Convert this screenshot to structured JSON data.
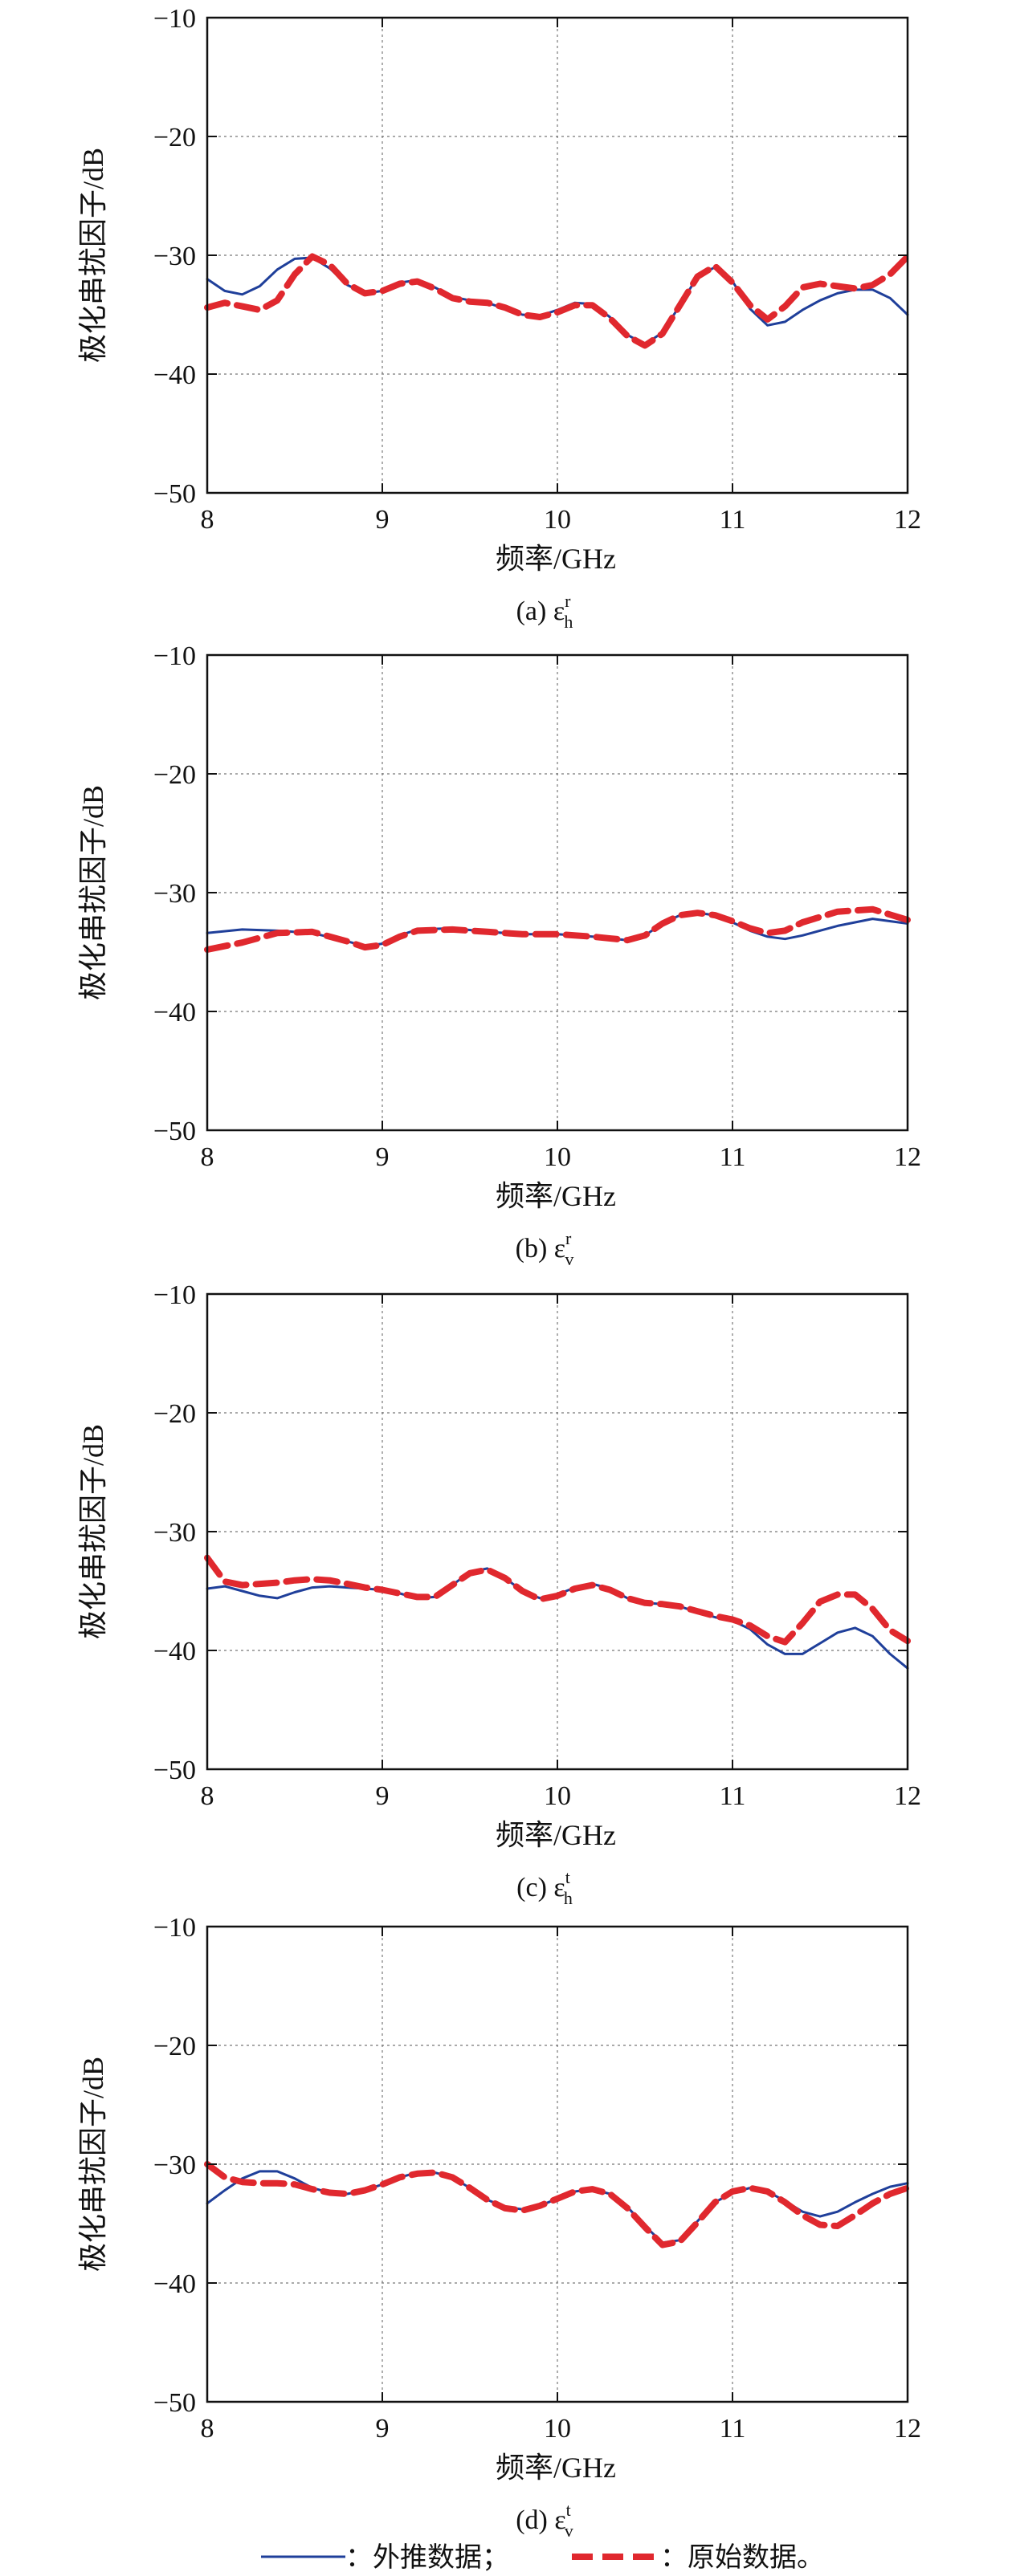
{
  "colors": {
    "extrapolated_line": "#1f3f9a",
    "original_line": "#e0282e",
    "grid": "#777777",
    "axes": "#111111"
  },
  "legend": {
    "extrapolated_label": "：外推数据；",
    "original_label": "：原始数据。"
  },
  "chart_data": [
    {
      "type": "line",
      "caption": "(a) ε",
      "caption_sup": "r",
      "caption_sub": "h",
      "xlabel": "频率/GHz",
      "ylabel": "极化串扰因子/dB",
      "xlim": [
        8,
        12
      ],
      "ylim": [
        -50,
        -10
      ],
      "xticks": [
        8,
        9,
        10,
        11,
        12
      ],
      "yticks": [
        -10,
        -20,
        -30,
        -40,
        -50
      ],
      "ytick_labels": [
        "−10",
        "−20",
        "−30",
        "−40",
        "−50"
      ],
      "grid": true,
      "series": [
        {
          "key": "extrapolated",
          "style": "solid",
          "x": [
            8.0,
            8.1,
            8.2,
            8.3,
            8.4,
            8.5,
            8.6,
            8.7,
            8.8,
            8.9,
            9.0,
            9.1,
            9.2,
            9.3,
            9.4,
            9.5,
            9.6,
            9.7,
            9.8,
            9.9,
            10.0,
            10.1,
            10.2,
            10.3,
            10.4,
            10.5,
            10.6,
            10.7,
            10.8,
            10.9,
            11.0,
            11.1,
            11.2,
            11.3,
            11.4,
            11.5,
            11.6,
            11.7,
            11.8,
            11.9,
            12.0
          ],
          "y": [
            -32.0,
            -33.0,
            -33.3,
            -32.6,
            -31.2,
            -30.3,
            -30.2,
            -31.1,
            -32.5,
            -33.2,
            -33.0,
            -32.3,
            -32.1,
            -32.7,
            -33.5,
            -33.8,
            -34.0,
            -34.5,
            -35.0,
            -35.1,
            -34.6,
            -34.0,
            -34.1,
            -35.2,
            -36.7,
            -37.5,
            -36.5,
            -34.2,
            -31.8,
            -31.0,
            -32.2,
            -34.5,
            -35.9,
            -35.6,
            -34.6,
            -33.8,
            -33.2,
            -32.9,
            -32.9,
            -33.6,
            -35.0
          ]
        },
        {
          "key": "original",
          "style": "dashed",
          "x": [
            8.0,
            8.1,
            8.2,
            8.3,
            8.4,
            8.5,
            8.6,
            8.7,
            8.8,
            8.9,
            9.0,
            9.1,
            9.2,
            9.3,
            9.4,
            9.5,
            9.6,
            9.7,
            9.8,
            9.9,
            10.0,
            10.1,
            10.2,
            10.3,
            10.4,
            10.5,
            10.6,
            10.7,
            10.8,
            10.9,
            11.0,
            11.1,
            11.2,
            11.3,
            11.4,
            11.5,
            11.6,
            11.7,
            11.8,
            11.9,
            12.0
          ],
          "y": [
            -34.4,
            -34.0,
            -34.3,
            -34.6,
            -33.8,
            -31.6,
            -30.1,
            -30.8,
            -32.4,
            -33.2,
            -33.0,
            -32.4,
            -32.2,
            -32.8,
            -33.6,
            -33.9,
            -34.0,
            -34.4,
            -35.0,
            -35.2,
            -34.8,
            -34.2,
            -34.2,
            -35.3,
            -36.8,
            -37.6,
            -36.6,
            -34.2,
            -31.8,
            -30.9,
            -32.3,
            -34.2,
            -35.4,
            -34.3,
            -32.7,
            -32.4,
            -32.6,
            -32.8,
            -32.5,
            -31.6,
            -30.1
          ]
        }
      ]
    },
    {
      "type": "line",
      "caption": "(b) ε",
      "caption_sup": "r",
      "caption_sub": "v",
      "xlabel": "频率/GHz",
      "ylabel": "极化串扰因子/dB",
      "xlim": [
        8,
        12
      ],
      "ylim": [
        -50,
        -10
      ],
      "xticks": [
        8,
        9,
        10,
        11,
        12
      ],
      "yticks": [
        -10,
        -20,
        -30,
        -40,
        -50
      ],
      "ytick_labels": [
        "−10",
        "−20",
        "−30",
        "−40",
        "−50"
      ],
      "grid": true,
      "series": [
        {
          "key": "extrapolated",
          "style": "solid",
          "x": [
            8.0,
            8.2,
            8.4,
            8.6,
            8.8,
            8.9,
            9.0,
            9.1,
            9.2,
            9.4,
            9.6,
            9.8,
            10.0,
            10.2,
            10.4,
            10.5,
            10.6,
            10.7,
            10.8,
            10.9,
            11.0,
            11.1,
            11.2,
            11.3,
            11.4,
            11.6,
            11.8,
            12.0
          ],
          "y": [
            -33.4,
            -33.1,
            -33.2,
            -33.4,
            -34.1,
            -34.5,
            -34.3,
            -33.6,
            -33.1,
            -33.0,
            -33.3,
            -33.5,
            -33.5,
            -33.7,
            -34.0,
            -33.6,
            -32.6,
            -31.9,
            -31.7,
            -31.9,
            -32.5,
            -33.2,
            -33.7,
            -33.9,
            -33.6,
            -32.8,
            -32.2,
            -32.6
          ]
        },
        {
          "key": "original",
          "style": "dashed",
          "x": [
            8.0,
            8.2,
            8.4,
            8.6,
            8.8,
            8.9,
            9.0,
            9.1,
            9.2,
            9.4,
            9.6,
            9.8,
            10.0,
            10.2,
            10.4,
            10.5,
            10.6,
            10.7,
            10.8,
            10.9,
            11.0,
            11.1,
            11.2,
            11.3,
            11.4,
            11.6,
            11.8,
            12.0
          ],
          "y": [
            -34.8,
            -34.2,
            -33.4,
            -33.3,
            -34.1,
            -34.6,
            -34.4,
            -33.7,
            -33.2,
            -33.1,
            -33.3,
            -33.5,
            -33.5,
            -33.7,
            -34.0,
            -33.6,
            -32.6,
            -31.9,
            -31.7,
            -31.9,
            -32.4,
            -33.0,
            -33.4,
            -33.2,
            -32.5,
            -31.6,
            -31.4,
            -32.3
          ]
        }
      ]
    },
    {
      "type": "line",
      "caption": "(c) ε",
      "caption_sup": "t",
      "caption_sub": "h",
      "xlabel": "频率/GHz",
      "ylabel": "极化串扰因子/dB",
      "xlim": [
        8,
        12
      ],
      "ylim": [
        -50,
        -10
      ],
      "xticks": [
        8,
        9,
        10,
        11,
        12
      ],
      "yticks": [
        -10,
        -20,
        -30,
        -40,
        -50
      ],
      "ytick_labels": [
        "−10",
        "−20",
        "−30",
        "−40",
        "−50"
      ],
      "grid": true,
      "series": [
        {
          "key": "extrapolated",
          "style": "solid",
          "x": [
            8.0,
            8.1,
            8.2,
            8.3,
            8.4,
            8.5,
            8.6,
            8.7,
            8.8,
            8.9,
            9.0,
            9.1,
            9.2,
            9.3,
            9.4,
            9.5,
            9.6,
            9.7,
            9.8,
            9.9,
            10.0,
            10.1,
            10.2,
            10.3,
            10.4,
            10.5,
            10.6,
            10.7,
            10.8,
            10.9,
            11.0,
            11.1,
            11.2,
            11.3,
            11.4,
            11.5,
            11.6,
            11.7,
            11.8,
            11.9,
            12.0
          ],
          "y": [
            -34.8,
            -34.6,
            -35.0,
            -35.4,
            -35.6,
            -35.1,
            -34.7,
            -34.6,
            -34.7,
            -34.8,
            -34.9,
            -35.2,
            -35.6,
            -35.5,
            -34.5,
            -33.4,
            -33.1,
            -33.9,
            -35.0,
            -35.6,
            -35.3,
            -34.7,
            -34.4,
            -34.8,
            -35.6,
            -36.0,
            -36.1,
            -36.3,
            -36.8,
            -37.2,
            -37.5,
            -38.2,
            -39.5,
            -40.3,
            -40.3,
            -39.4,
            -38.5,
            -38.1,
            -38.8,
            -40.3,
            -41.5
          ]
        },
        {
          "key": "original",
          "style": "dashed",
          "x": [
            8.0,
            8.1,
            8.2,
            8.3,
            8.4,
            8.5,
            8.6,
            8.7,
            8.8,
            8.9,
            9.0,
            9.1,
            9.2,
            9.3,
            9.4,
            9.5,
            9.6,
            9.7,
            9.8,
            9.9,
            10.0,
            10.1,
            10.2,
            10.3,
            10.4,
            10.5,
            10.6,
            10.7,
            10.8,
            10.9,
            11.0,
            11.1,
            11.2,
            11.3,
            11.4,
            11.5,
            11.6,
            11.7,
            11.8,
            11.9,
            12.0
          ],
          "y": [
            -32.2,
            -34.2,
            -34.5,
            -34.4,
            -34.3,
            -34.1,
            -34.0,
            -34.1,
            -34.4,
            -34.7,
            -34.9,
            -35.2,
            -35.5,
            -35.5,
            -34.5,
            -33.5,
            -33.2,
            -33.9,
            -35.0,
            -35.7,
            -35.4,
            -34.8,
            -34.5,
            -34.9,
            -35.6,
            -36.0,
            -36.1,
            -36.3,
            -36.7,
            -37.1,
            -37.4,
            -37.9,
            -38.8,
            -39.3,
            -37.7,
            -35.9,
            -35.3,
            -35.3,
            -36.5,
            -38.3,
            -39.2
          ]
        }
      ]
    },
    {
      "type": "line",
      "caption": "(d) ε",
      "caption_sup": "t",
      "caption_sub": "v",
      "xlabel": "频率/GHz",
      "ylabel": "极化串扰因子/dB",
      "xlim": [
        8,
        12
      ],
      "ylim": [
        -50,
        -10
      ],
      "xticks": [
        8,
        9,
        10,
        11,
        12
      ],
      "yticks": [
        -10,
        -20,
        -30,
        -40,
        -50
      ],
      "ytick_labels": [
        "−10",
        "−20",
        "−30",
        "−40",
        "−50"
      ],
      "grid": true,
      "series": [
        {
          "key": "extrapolated",
          "style": "solid",
          "x": [
            8.0,
            8.1,
            8.2,
            8.3,
            8.4,
            8.5,
            8.6,
            8.7,
            8.8,
            8.9,
            9.0,
            9.1,
            9.2,
            9.3,
            9.4,
            9.5,
            9.6,
            9.7,
            9.8,
            9.9,
            10.0,
            10.1,
            10.2,
            10.3,
            10.4,
            10.5,
            10.6,
            10.7,
            10.8,
            10.9,
            11.0,
            11.1,
            11.2,
            11.3,
            11.4,
            11.5,
            11.6,
            11.7,
            11.8,
            11.9,
            12.0
          ],
          "y": [
            -33.3,
            -32.2,
            -31.2,
            -30.6,
            -30.6,
            -31.2,
            -32.0,
            -32.4,
            -32.5,
            -32.2,
            -31.7,
            -31.1,
            -30.7,
            -30.7,
            -31.1,
            -32.0,
            -33.0,
            -33.6,
            -33.8,
            -33.5,
            -32.9,
            -32.3,
            -32.1,
            -32.5,
            -33.6,
            -35.2,
            -36.6,
            -36.4,
            -34.8,
            -33.2,
            -32.4,
            -32.0,
            -32.3,
            -33.1,
            -34.0,
            -34.4,
            -34.0,
            -33.2,
            -32.5,
            -31.9,
            -31.6
          ]
        },
        {
          "key": "original",
          "style": "dashed",
          "x": [
            8.0,
            8.1,
            8.2,
            8.3,
            8.4,
            8.5,
            8.6,
            8.7,
            8.8,
            8.9,
            9.0,
            9.1,
            9.2,
            9.3,
            9.4,
            9.5,
            9.6,
            9.7,
            9.8,
            9.9,
            10.0,
            10.1,
            10.2,
            10.3,
            10.4,
            10.5,
            10.6,
            10.7,
            10.8,
            10.9,
            11.0,
            11.1,
            11.2,
            11.3,
            11.4,
            11.5,
            11.6,
            11.7,
            11.8,
            11.9,
            12.0
          ],
          "y": [
            -30.0,
            -31.1,
            -31.5,
            -31.6,
            -31.6,
            -31.7,
            -32.1,
            -32.4,
            -32.5,
            -32.2,
            -31.7,
            -31.1,
            -30.8,
            -30.7,
            -31.1,
            -32.0,
            -33.0,
            -33.7,
            -33.9,
            -33.5,
            -32.9,
            -32.3,
            -32.1,
            -32.5,
            -33.7,
            -35.3,
            -36.8,
            -36.5,
            -34.9,
            -33.2,
            -32.3,
            -32.0,
            -32.3,
            -33.2,
            -34.3,
            -35.1,
            -35.2,
            -34.3,
            -33.3,
            -32.5,
            -32.0
          ]
        }
      ]
    }
  ]
}
